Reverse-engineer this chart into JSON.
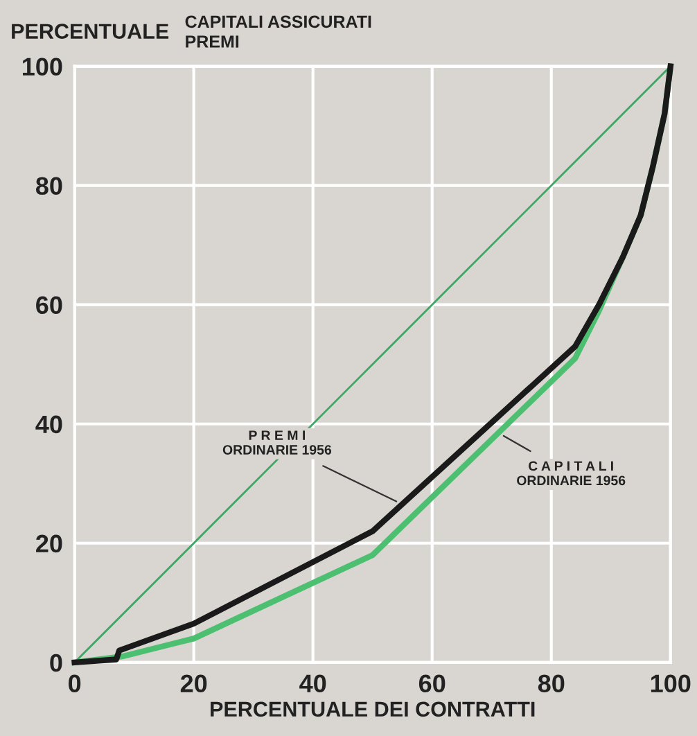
{
  "chart_data": {
    "type": "line",
    "ylabel": "PERCENTUALE",
    "subtitle": "CAPITALI ASSICURATI\nPREMI",
    "xlabel": "PERCENTUALE DEI CONTRATTI",
    "series": [
      {
        "color": "#3aa860",
        "x": [
          0,
          100
        ],
        "values": [
          0,
          100
        ]
      },
      {
        "color": "#4cc070",
        "x": [
          0,
          8,
          20,
          50,
          84,
          88,
          92,
          95,
          97,
          99,
          100
        ],
        "values": [
          0,
          1,
          4,
          18,
          51,
          59,
          68,
          75,
          83,
          92,
          100
        ]
      },
      {
        "color": "#1a1a1a",
        "x": [
          0,
          7,
          7.5,
          20,
          50,
          84,
          88,
          92,
          95,
          97,
          99,
          100
        ],
        "values": [
          0,
          0.5,
          2,
          6.5,
          22,
          53,
          60,
          68,
          75,
          83,
          92,
          100
        ]
      }
    ],
    "annotations": [
      {
        "text": "P R E M I\nORDINARIE 1956",
        "x": 54,
        "y": 27
      },
      {
        "text": "C A P I T A L I\nORDINARIE 1956",
        "x": 72,
        "y": 38
      }
    ],
    "xlim": [
      0,
      100
    ],
    "ylim": [
      0,
      100
    ],
    "xticks": [
      0,
      20,
      40,
      60,
      80,
      100
    ],
    "yticks": [
      0,
      20,
      40,
      60,
      80,
      100
    ],
    "grid": true,
    "legend": false,
    "marker": "none",
    "line_style": "solid"
  }
}
